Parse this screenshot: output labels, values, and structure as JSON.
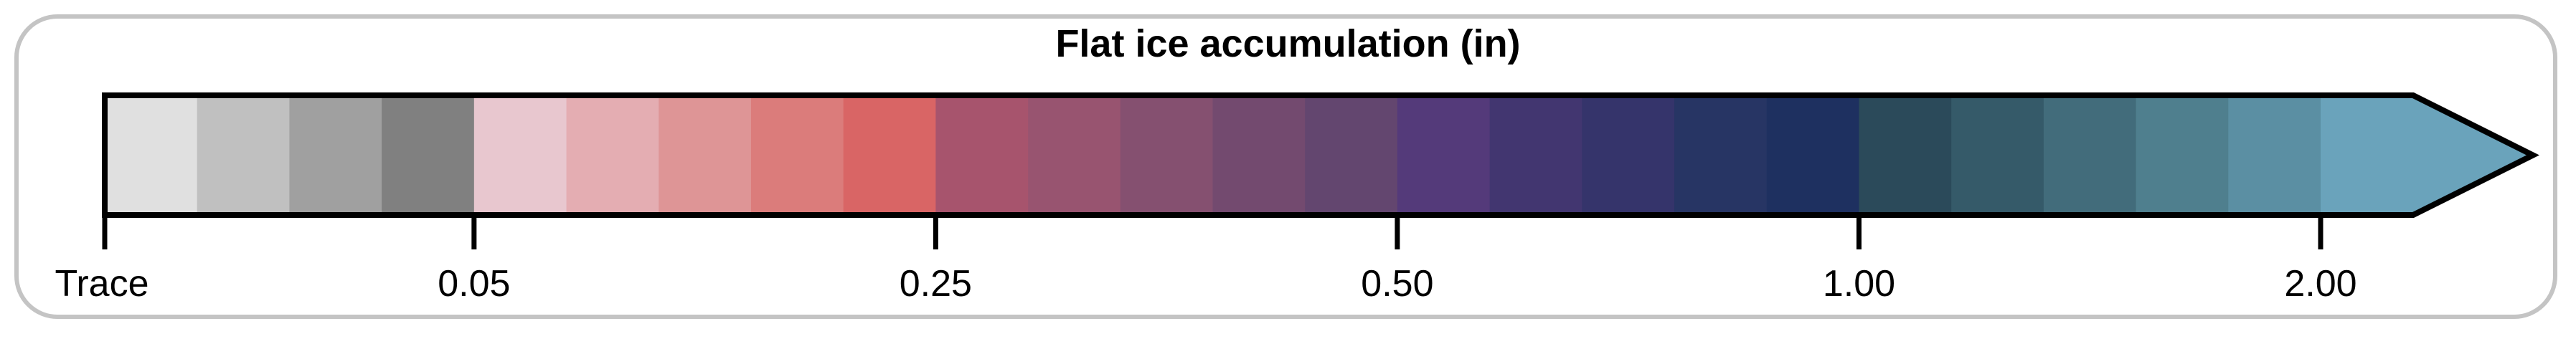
{
  "legend": {
    "title": "Flat ice accumulation (in)",
    "colors": [
      "#e0e0e0",
      "#c0c0c0",
      "#a0a0a0",
      "#808080",
      "#e8c7cf",
      "#e4adb2",
      "#de9596",
      "#db7c7b",
      "#d96565",
      "#a7546d",
      "#985470",
      "#855070",
      "#734a6f",
      "#63466f",
      "#543a7a",
      "#423670",
      "#35346b",
      "#273564",
      "#1e3060",
      "#2b4a5a",
      "#355a69",
      "#426c7b",
      "#4f7f8e",
      "#5b8fa3",
      "#6aa3bb"
    ],
    "ticks": [
      {
        "label": "Trace",
        "index": 0
      },
      {
        "label": "0.05",
        "index": 4
      },
      {
        "label": "0.25",
        "index": 9
      },
      {
        "label": "0.50",
        "index": 14
      },
      {
        "label": "1.00",
        "index": 19
      },
      {
        "label": "2.00",
        "index": 24
      }
    ],
    "extend_right": true
  }
}
